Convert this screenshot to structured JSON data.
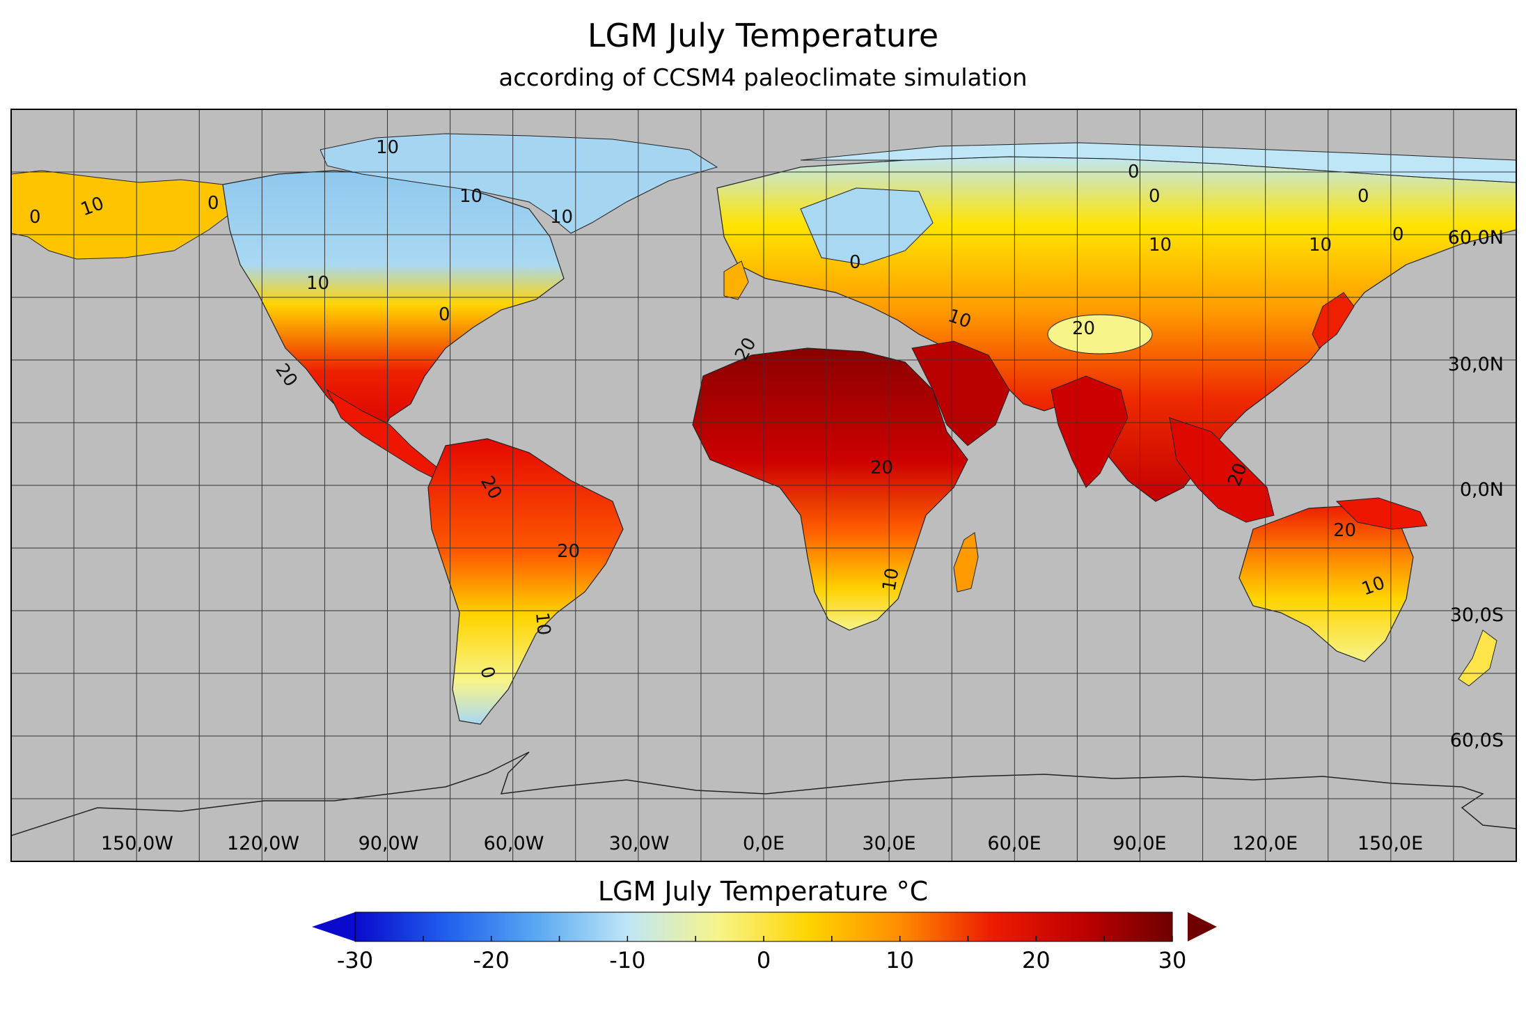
{
  "title": "LGM July Temperature",
  "subtitle": "according of CCSM4 paleoclimate simulation",
  "map": {
    "background_color": "#bdbdbd",
    "longitude_labels": [
      "150,0W",
      "120,0W",
      "90,0W",
      "60,0W",
      "30,0W",
      "0,0E",
      "30,0E",
      "60,0E",
      "90,0E",
      "120,0E",
      "150,0E"
    ],
    "latitude_labels": [
      "60,0N",
      "30,0N",
      "0,0N",
      "30,0S",
      "60,0S"
    ],
    "contour_labels": [
      "0",
      "10",
      "20"
    ]
  },
  "colorbar": {
    "title": "LGM July Temperature °C",
    "min": -30,
    "max": 30,
    "ticks": [
      "-30",
      "-20",
      "-10",
      "0",
      "10",
      "20",
      "30"
    ],
    "stops": [
      "#0a0acc",
      "#1f5fee",
      "#5aa8f2",
      "#bfe6f7",
      "#f7f48a",
      "#ffd400",
      "#ff8c00",
      "#ee1c00",
      "#c00000",
      "#6e0000"
    ],
    "under_color": "#0a0acc",
    "over_color": "#6e0000"
  }
}
